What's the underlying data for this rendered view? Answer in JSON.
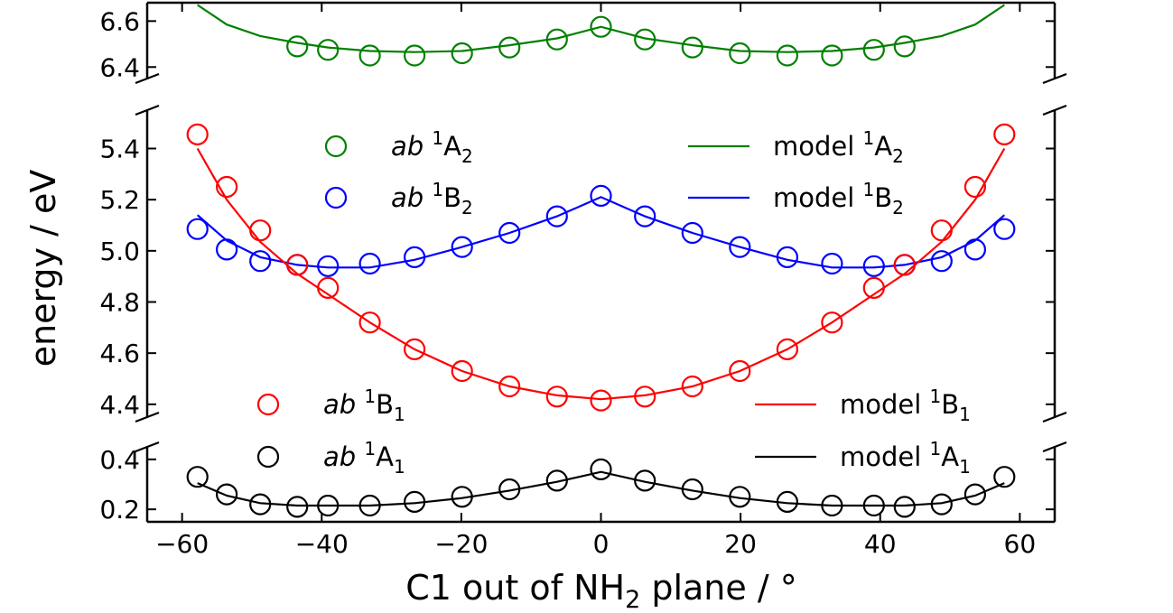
{
  "chart_data": {
    "type": "scatter",
    "title": "",
    "xlabel": "C1 out of NH₂ plane / °",
    "ylabel": "energy / eV",
    "xlim": [
      -65,
      65
    ],
    "xticks": [
      -60,
      -40,
      -20,
      0,
      20,
      40,
      60
    ],
    "xtick_labels": [
      "−60",
      "−40",
      "−20",
      "0",
      "20",
      "40",
      "60"
    ],
    "broken_y_axis": true,
    "panels": [
      {
        "name": "top",
        "ylim": [
          6.35,
          6.68
        ],
        "yticks": [
          6.4,
          6.6
        ],
        "ytick_labels": [
          "6.4",
          "6.6"
        ]
      },
      {
        "name": "middle",
        "ylim": [
          4.35,
          5.55
        ],
        "yticks": [
          4.4,
          4.6,
          4.8,
          5.0,
          5.2,
          5.4
        ],
        "ytick_labels": [
          "4.4",
          "4.6",
          "4.8",
          "5.0",
          "5.2",
          "5.4"
        ]
      },
      {
        "name": "bottom",
        "ylim": [
          0.15,
          0.45
        ],
        "yticks": [
          0.2,
          0.4
        ],
        "ytick_labels": [
          "0.2",
          "0.4"
        ]
      }
    ],
    "x": [
      -57.8,
      -53.6,
      -48.8,
      -43.5,
      -39.1,
      -33.1,
      -26.7,
      -19.9,
      -13.1,
      -6.3,
      0.0,
      6.3,
      13.1,
      19.9,
      26.7,
      33.1,
      39.1,
      43.5,
      48.8,
      53.6,
      57.8
    ],
    "series": [
      {
        "sup": "1",
        "sym": "A",
        "sub": "2",
        "color": "#008000",
        "panel": "top",
        "legend_slot": 0,
        "ab_x": [
          -43.5,
          -39.1,
          -33.1,
          -26.7,
          -19.9,
          -13.1,
          -6.3,
          0.0,
          6.3,
          13.1,
          19.9,
          26.7,
          33.1,
          39.1,
          43.5
        ],
        "ab": [
          6.49,
          6.475,
          6.45,
          6.45,
          6.46,
          6.485,
          6.52,
          6.575,
          6.52,
          6.485,
          6.46,
          6.45,
          6.45,
          6.475,
          6.49
        ],
        "model": [
          6.67,
          6.585,
          6.535,
          6.505,
          6.485,
          6.47,
          6.465,
          6.47,
          6.495,
          6.525,
          6.575,
          6.525,
          6.495,
          6.47,
          6.465,
          6.47,
          6.485,
          6.505,
          6.535,
          6.585,
          6.67
        ]
      },
      {
        "sup": "1",
        "sym": "B",
        "sub": "2",
        "color": "#0000ff",
        "panel": "middle",
        "legend_slot": 1,
        "ab": [
          5.085,
          5.005,
          4.96,
          4.945,
          4.94,
          4.95,
          4.975,
          5.015,
          5.07,
          5.135,
          5.215,
          5.135,
          5.07,
          5.015,
          4.975,
          4.95,
          4.94,
          4.945,
          4.96,
          5.005,
          5.085
        ],
        "model": [
          5.14,
          5.04,
          4.975,
          4.945,
          4.935,
          4.935,
          4.965,
          5.015,
          5.07,
          5.135,
          5.21,
          5.135,
          5.07,
          5.015,
          4.965,
          4.935,
          4.935,
          4.945,
          4.975,
          5.04,
          5.14
        ]
      },
      {
        "sup": "1",
        "sym": "B",
        "sub": "1",
        "color": "#ff0000",
        "panel": "middle",
        "legend_slot": 2,
        "ab": [
          5.455,
          5.25,
          5.08,
          4.945,
          4.855,
          4.72,
          4.615,
          4.53,
          4.47,
          4.43,
          4.415,
          4.43,
          4.47,
          4.53,
          4.615,
          4.72,
          4.855,
          4.945,
          5.08,
          5.25,
          5.455
        ],
        "model": [
          5.4,
          5.2,
          5.035,
          4.91,
          4.83,
          4.72,
          4.615,
          4.53,
          4.47,
          4.435,
          4.42,
          4.435,
          4.47,
          4.53,
          4.615,
          4.72,
          4.83,
          4.91,
          5.035,
          5.2,
          5.4
        ]
      },
      {
        "sup": "1",
        "sym": "A",
        "sub": "1",
        "color": "#000000",
        "panel": "bottom",
        "legend_slot": 3,
        "ab": [
          0.33,
          0.26,
          0.22,
          0.21,
          0.215,
          0.215,
          0.23,
          0.25,
          0.28,
          0.315,
          0.36,
          0.315,
          0.28,
          0.25,
          0.23,
          0.215,
          0.215,
          0.21,
          0.22,
          0.26,
          0.33
        ],
        "model": [
          0.305,
          0.255,
          0.225,
          0.215,
          0.215,
          0.215,
          0.225,
          0.245,
          0.275,
          0.31,
          0.35,
          0.31,
          0.275,
          0.245,
          0.225,
          0.215,
          0.215,
          0.215,
          0.225,
          0.255,
          0.305
        ]
      }
    ],
    "legend": {
      "ab_prefix": "ab",
      "model_prefix": "model",
      "placement": "inside, left and right columns, upper and lower pairs",
      "entries_order": [
        "1A2",
        "1B2",
        "1B1",
        "1A1"
      ]
    }
  }
}
